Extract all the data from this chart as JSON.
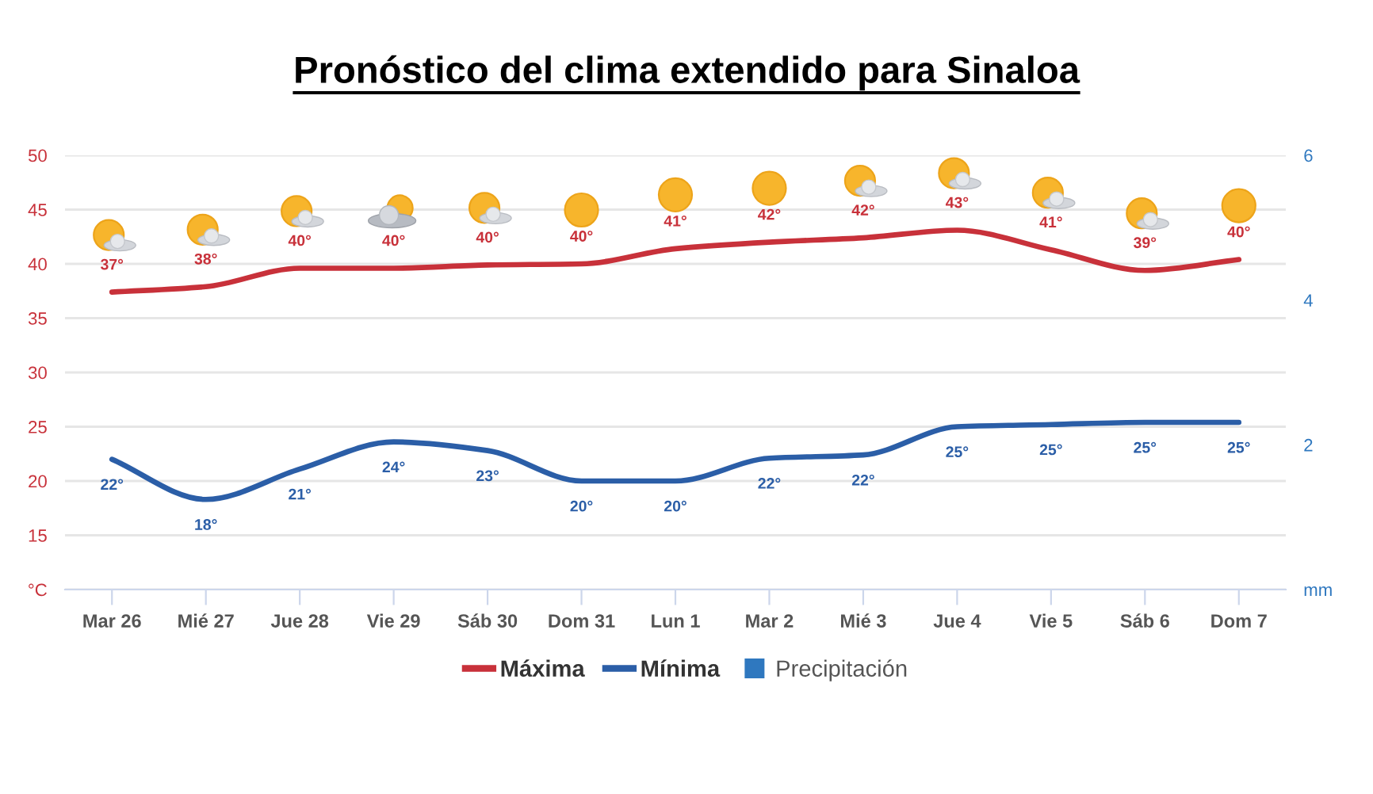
{
  "chart_data": {
    "type": "line",
    "title": "Pronóstico del clima extendido para Sinaloa",
    "categories": [
      "Mar 26",
      "Mié 27",
      "Jue 28",
      "Vie 29",
      "Sáb 30",
      "Dom 31",
      "Lun 1",
      "Mar 2",
      "Mié 3",
      "Jue 4",
      "Vie 5",
      "Sáb 6",
      "Dom 7"
    ],
    "series": [
      {
        "name": "Máxima",
        "color": "#c8313a",
        "values": [
          37.4,
          37.9,
          39.6,
          39.6,
          39.9,
          40.0,
          41.4,
          42.0,
          42.4,
          43.1,
          41.3,
          39.4,
          40.4
        ],
        "value_labels": [
          "37°",
          "38°",
          "40°",
          "40°",
          "40°",
          "40°",
          "41°",
          "42°",
          "42°",
          "43°",
          "41°",
          "39°",
          "40°"
        ]
      },
      {
        "name": "Mínima",
        "color": "#2b5ea7",
        "values": [
          22.0,
          18.3,
          21.1,
          23.6,
          22.8,
          20.0,
          20.0,
          22.1,
          22.4,
          25.0,
          25.2,
          25.4,
          25.4
        ],
        "value_labels": [
          "22°",
          "18°",
          "21°",
          "24°",
          "23°",
          "20°",
          "20°",
          "22°",
          "22°",
          "25°",
          "25°",
          "25°",
          "25°"
        ]
      },
      {
        "name": "Precipitación",
        "type": "bar",
        "axis": "y2",
        "color": "#2f78bf",
        "values": [
          0,
          0,
          0,
          0,
          0,
          0,
          0,
          0,
          0,
          0,
          0,
          0,
          0
        ]
      }
    ],
    "ylim": [
      10,
      50
    ],
    "yticks": [
      {
        "value": 10,
        "label": "°C"
      },
      15,
      20,
      25,
      30,
      35,
      40,
      45,
      50
    ],
    "y2lim": [
      0,
      6
    ],
    "y2ticks": [
      {
        "value": 0,
        "label": "mm"
      },
      2,
      4,
      6
    ],
    "grid": "y",
    "legend": "bottom",
    "line_style": "solid"
  }
}
